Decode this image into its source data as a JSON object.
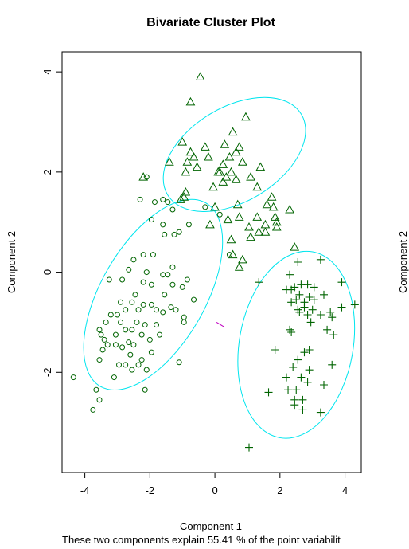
{
  "chart_data": {
    "type": "scatter",
    "title": "Bivariate Cluster Plot",
    "xlabel": "Component 1",
    "ylabel": "Component 2",
    "ylabel_right": "Component 2",
    "subtitle": "These two components explain 55.41 % of the point variabilit",
    "xlim": [
      -4.7,
      4.5
    ],
    "ylim": [
      -4.0,
      4.4
    ],
    "xticks": [
      -4,
      -2,
      0,
      2,
      4
    ],
    "xtick_labels": [
      "-4",
      "-2",
      "0",
      "2",
      "4"
    ],
    "yticks": [
      -2,
      0,
      2,
      4
    ],
    "ytick_labels": [
      "-2",
      "0",
      "2",
      "4"
    ],
    "grid": false,
    "colors": {
      "points": "#006400",
      "ellipse": "#00e5ee",
      "connector": "#c000c0"
    },
    "series": [
      {
        "marker": "triangle",
        "points": [
          [
            -0.45,
            3.9
          ],
          [
            -0.75,
            3.4
          ],
          [
            0.95,
            3.1
          ],
          [
            -2.2,
            1.9
          ],
          [
            -1.0,
            2.6
          ],
          [
            -0.3,
            2.5
          ],
          [
            -0.75,
            2.4
          ],
          [
            -0.2,
            2.3
          ],
          [
            0.65,
            2.4
          ],
          [
            0.45,
            2.3
          ],
          [
            0.3,
            2.55
          ],
          [
            0.75,
            2.5
          ],
          [
            0.55,
            2.8
          ],
          [
            -0.55,
            2.1
          ],
          [
            -1.4,
            2.2
          ],
          [
            -0.9,
            2.0
          ],
          [
            0.1,
            2.0
          ],
          [
            0.25,
            2.15
          ],
          [
            -0.65,
            2.3
          ],
          [
            -0.85,
            2.2
          ],
          [
            0.15,
            2.0
          ],
          [
            0.5,
            2.0
          ],
          [
            -0.05,
            1.7
          ],
          [
            0.65,
            1.85
          ],
          [
            0.85,
            2.2
          ],
          [
            1.4,
            2.1
          ],
          [
            1.1,
            1.9
          ],
          [
            1.3,
            1.7
          ],
          [
            1.75,
            1.5
          ],
          [
            1.8,
            1.3
          ],
          [
            1.6,
            1.35
          ],
          [
            1.85,
            1.1
          ],
          [
            1.3,
            1.1
          ],
          [
            1.9,
            0.9
          ],
          [
            1.55,
            0.95
          ],
          [
            2.3,
            1.25
          ],
          [
            2.45,
            0.5
          ],
          [
            1.35,
            0.8
          ],
          [
            1.1,
            0.7
          ],
          [
            1.05,
            0.9
          ],
          [
            0.75,
            1.1
          ],
          [
            0.4,
            1.05
          ],
          [
            0.7,
            1.35
          ],
          [
            0.25,
            1.8
          ],
          [
            0.0,
            1.3
          ],
          [
            0.5,
            0.65
          ],
          [
            0.55,
            0.35
          ],
          [
            -0.9,
            1.6
          ],
          [
            -1.05,
            1.45
          ],
          [
            -0.15,
            0.95
          ],
          [
            0.85,
            0.25
          ],
          [
            0.75,
            0.1
          ],
          [
            1.9,
            1.0
          ],
          [
            -0.95,
            1.5
          ],
          [
            1.55,
            0.8
          ],
          [
            0.35,
            1.9
          ]
        ]
      },
      {
        "marker": "circle",
        "points": [
          [
            -2.1,
            1.9
          ],
          [
            -2.3,
            1.45
          ],
          [
            -1.85,
            1.4
          ],
          [
            -1.6,
            1.45
          ],
          [
            -1.45,
            1.4
          ],
          [
            -1.95,
            1.05
          ],
          [
            -1.6,
            0.95
          ],
          [
            -0.8,
            0.95
          ],
          [
            -1.3,
            1.25
          ],
          [
            -1.1,
            0.8
          ],
          [
            -1.55,
            0.75
          ],
          [
            -1.25,
            0.75
          ],
          [
            -2.2,
            0.35
          ],
          [
            -2.1,
            0.0
          ],
          [
            -2.5,
            0.25
          ],
          [
            -1.9,
            0.35
          ],
          [
            -2.65,
            0.05
          ],
          [
            -3.25,
            -0.15
          ],
          [
            -2.85,
            -0.15
          ],
          [
            -2.2,
            -0.2
          ],
          [
            -1.95,
            -0.25
          ],
          [
            -1.6,
            -0.05
          ],
          [
            -1.3,
            0.1
          ],
          [
            -0.85,
            -0.15
          ],
          [
            -1.3,
            -0.25
          ],
          [
            -1.0,
            -0.3
          ],
          [
            -1.55,
            -0.45
          ],
          [
            -0.65,
            -0.55
          ],
          [
            -2.2,
            -0.65
          ],
          [
            -2.35,
            -0.75
          ],
          [
            -2.55,
            -0.6
          ],
          [
            -2.75,
            -0.75
          ],
          [
            -2.9,
            -0.6
          ],
          [
            -3.0,
            -0.85
          ],
          [
            -3.2,
            -0.85
          ],
          [
            -1.8,
            -0.75
          ],
          [
            -1.95,
            -0.65
          ],
          [
            -1.6,
            -0.8
          ],
          [
            -1.35,
            -0.7
          ],
          [
            -1.2,
            -0.75
          ],
          [
            -0.95,
            -0.9
          ],
          [
            -0.95,
            -1.0
          ],
          [
            -1.8,
            -1.05
          ],
          [
            -2.15,
            -1.05
          ],
          [
            -2.4,
            -1.0
          ],
          [
            -2.55,
            -1.15
          ],
          [
            -2.75,
            -1.15
          ],
          [
            -3.05,
            -1.25
          ],
          [
            -3.35,
            -1.0
          ],
          [
            -3.55,
            -1.15
          ],
          [
            -3.45,
            -1.55
          ],
          [
            -3.55,
            -1.75
          ],
          [
            -3.3,
            -1.45
          ],
          [
            -3.05,
            -1.45
          ],
          [
            -2.85,
            -1.5
          ],
          [
            -2.65,
            -1.4
          ],
          [
            -2.5,
            -1.45
          ],
          [
            -2.25,
            -1.25
          ],
          [
            -2.0,
            -1.35
          ],
          [
            -2.35,
            -1.85
          ],
          [
            -2.1,
            -1.95
          ],
          [
            -2.55,
            -1.95
          ],
          [
            -2.75,
            -1.85
          ],
          [
            -2.95,
            -1.85
          ],
          [
            -3.1,
            -2.1
          ],
          [
            -3.65,
            -2.35
          ],
          [
            -1.1,
            -1.8
          ],
          [
            -1.95,
            -1.6
          ],
          [
            -2.25,
            -1.75
          ],
          [
            -2.15,
            -2.35
          ],
          [
            -4.35,
            -2.1
          ],
          [
            -3.55,
            -2.55
          ],
          [
            -3.75,
            -2.75
          ],
          [
            -0.3,
            1.3
          ],
          [
            0.15,
            1.15
          ],
          [
            0.45,
            0.35
          ],
          [
            -1.7,
            -1.25
          ],
          [
            -2.6,
            -1.65
          ],
          [
            -3.4,
            -1.35
          ],
          [
            -2.9,
            -1.0
          ],
          [
            -1.45,
            -0.05
          ],
          [
            -2.45,
            -0.45
          ],
          [
            -3.5,
            -1.25
          ]
        ]
      },
      {
        "marker": "plus",
        "points": [
          [
            2.55,
            0.2
          ],
          [
            3.25,
            0.25
          ],
          [
            2.3,
            -0.05
          ],
          [
            3.9,
            -0.2
          ],
          [
            1.35,
            -0.2
          ],
          [
            2.2,
            -0.35
          ],
          [
            2.35,
            -0.35
          ],
          [
            2.45,
            -0.3
          ],
          [
            2.65,
            -0.25
          ],
          [
            2.85,
            -0.25
          ],
          [
            3.05,
            -0.3
          ],
          [
            2.6,
            -0.45
          ],
          [
            2.9,
            -0.5
          ],
          [
            3.05,
            -0.55
          ],
          [
            3.35,
            -0.45
          ],
          [
            2.35,
            -0.6
          ],
          [
            2.5,
            -0.55
          ],
          [
            2.75,
            -0.6
          ],
          [
            2.55,
            -0.75
          ],
          [
            2.75,
            -0.7
          ],
          [
            3.0,
            -0.75
          ],
          [
            2.85,
            -0.85
          ],
          [
            3.25,
            -0.85
          ],
          [
            2.95,
            -1.0
          ],
          [
            3.55,
            -0.8
          ],
          [
            3.6,
            -0.9
          ],
          [
            3.9,
            -0.7
          ],
          [
            4.3,
            -0.65
          ],
          [
            2.3,
            -1.15
          ],
          [
            2.35,
            -1.2
          ],
          [
            3.45,
            -1.15
          ],
          [
            3.65,
            -1.25
          ],
          [
            1.85,
            -1.55
          ],
          [
            2.55,
            -1.75
          ],
          [
            2.9,
            -1.55
          ],
          [
            2.75,
            -1.6
          ],
          [
            2.9,
            -1.95
          ],
          [
            3.6,
            -1.85
          ],
          [
            2.65,
            -2.1
          ],
          [
            2.85,
            -2.2
          ],
          [
            2.2,
            -2.1
          ],
          [
            2.5,
            -2.35
          ],
          [
            2.45,
            -2.55
          ],
          [
            2.45,
            -2.65
          ],
          [
            1.65,
            -2.4
          ],
          [
            2.25,
            -2.35
          ],
          [
            3.35,
            -2.25
          ],
          [
            2.7,
            -2.55
          ],
          [
            2.7,
            -2.75
          ],
          [
            3.25,
            -2.8
          ],
          [
            1.05,
            -3.5
          ],
          [
            2.6,
            -0.8
          ],
          [
            2.4,
            -1.9
          ]
        ]
      }
    ],
    "ellipses": [
      {
        "cx": 0.6,
        "cy": 2.35,
        "rx": 2.4,
        "ry": 1.45,
        "angle_deg": -31
      },
      {
        "cx": -1.9,
        "cy": -0.45,
        "rx": 3.25,
        "ry": 1.6,
        "angle_deg": -60
      },
      {
        "cx": 2.5,
        "cy": -1.45,
        "rx": 2.9,
        "ry": 1.75,
        "angle_deg": -80
      }
    ],
    "connectors": [
      {
        "from": [
          0.05,
          -1.0
        ],
        "to": [
          0.3,
          -1.1
        ]
      }
    ]
  }
}
